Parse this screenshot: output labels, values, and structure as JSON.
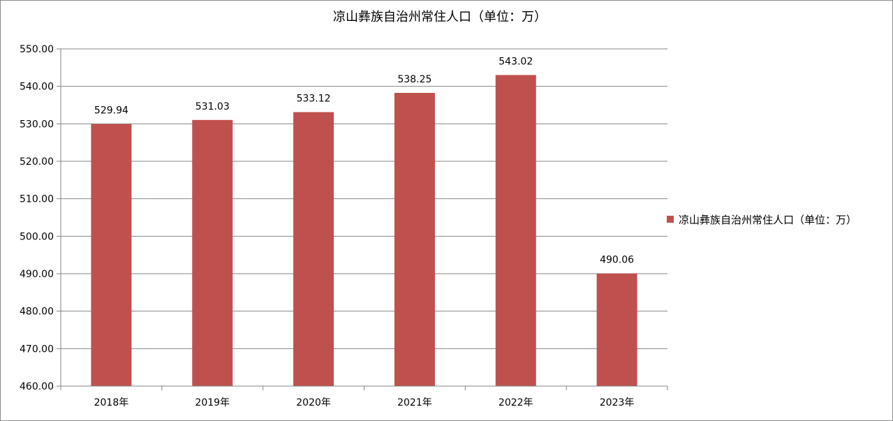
{
  "chart_data": {
    "type": "bar",
    "title": "凉山彝族自治州常住人口（单位：万）",
    "categories": [
      "2018年",
      "2019年",
      "2020年",
      "2021年",
      "2022年",
      "2023年"
    ],
    "series": [
      {
        "name": "凉山彝族自治州常住人口（单位：万）",
        "values": [
          529.94,
          531.03,
          533.12,
          538.25,
          543.02,
          490.06
        ],
        "color": "#c0504d"
      }
    ],
    "data_labels": [
      "529.94",
      "531.03",
      "533.12",
      "538.25",
      "543.02",
      "490.06"
    ],
    "y_ticks": [
      "460.00",
      "470.00",
      "480.00",
      "490.00",
      "500.00",
      "510.00",
      "520.00",
      "530.00",
      "540.00",
      "550.00"
    ],
    "ylim": [
      460,
      550
    ],
    "grid": true,
    "legend_position": "right",
    "xlabel": "",
    "ylabel": ""
  }
}
